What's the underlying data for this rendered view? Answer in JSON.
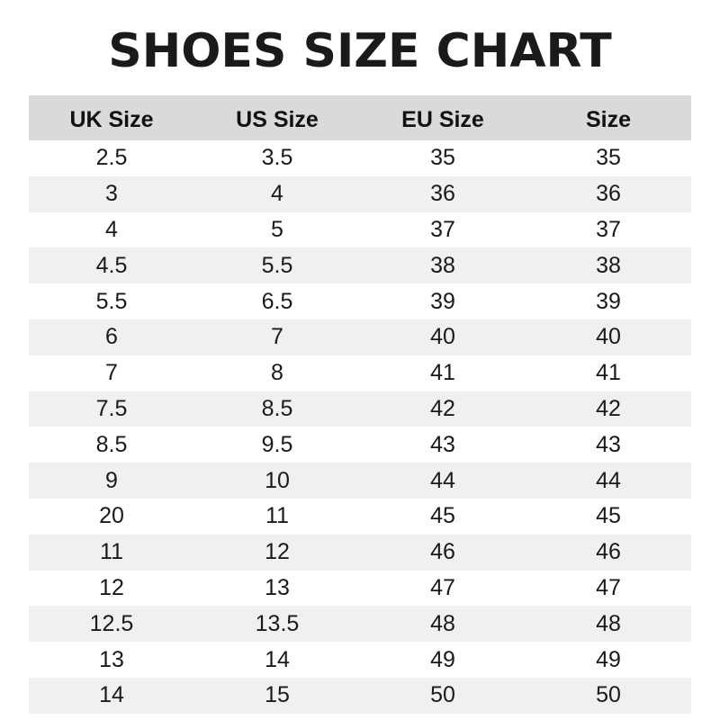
{
  "title": "SHOES SIZE CHART",
  "table": {
    "headers": [
      "UK Size",
      "US Size",
      "EU Size",
      "Size"
    ],
    "rows": [
      [
        "2.5",
        "3.5",
        "35",
        "35"
      ],
      [
        "3",
        "4",
        "36",
        "36"
      ],
      [
        "4",
        "5",
        "37",
        "37"
      ],
      [
        "4.5",
        "5.5",
        "38",
        "38"
      ],
      [
        "5.5",
        "6.5",
        "39",
        "39"
      ],
      [
        "6",
        "7",
        "40",
        "40"
      ],
      [
        "7",
        "8",
        "41",
        "41"
      ],
      [
        "7.5",
        "8.5",
        "42",
        "42"
      ],
      [
        "8.5",
        "9.5",
        "43",
        "43"
      ],
      [
        "9",
        "10",
        "44",
        "44"
      ],
      [
        "20",
        "11",
        "45",
        "45"
      ],
      [
        "11",
        "12",
        "46",
        "46"
      ],
      [
        "12",
        "13",
        "47",
        "47"
      ],
      [
        "12.5",
        "13.5",
        "48",
        "48"
      ],
      [
        "13",
        "14",
        "49",
        "49"
      ],
      [
        "14",
        "15",
        "50",
        "50"
      ]
    ]
  },
  "colors": {
    "header_bg": "#dadada",
    "stripe_bg": "#f0f0f0"
  }
}
